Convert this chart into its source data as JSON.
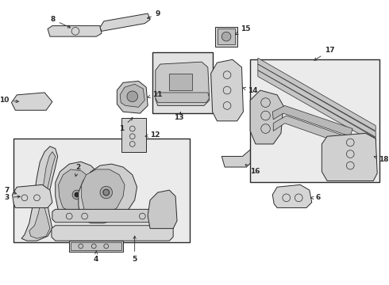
{
  "bg_color": "#ffffff",
  "line_color": "#2a2a2a",
  "box_fill_left": "#e8e8e8",
  "box_fill_right": "#e8e8e8",
  "box_fill_13": "#e0e0e0",
  "part_fill": "#e0e0e0",
  "part_fill_dark": "#c8c8c8",
  "figsize": [
    4.9,
    3.6
  ],
  "dpi": 100,
  "xlim": [
    0,
    490
  ],
  "ylim": [
    0,
    360
  ]
}
